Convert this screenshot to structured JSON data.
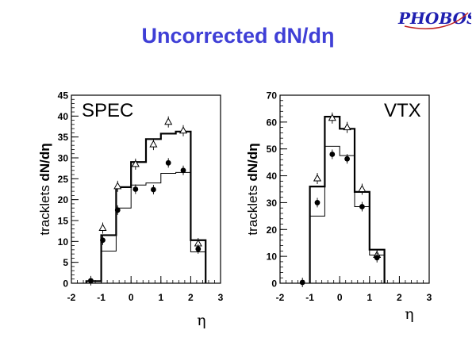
{
  "slide": {
    "title": "Uncorrected dN/dη",
    "logo_text": "PHOBOS"
  },
  "style": {
    "title_color": "#3f3fd6",
    "logo_color": "#1f1fb0",
    "logo_accent": "#c02020"
  },
  "chart_data": [
    {
      "type": "histogram",
      "panel_label": "SPEC",
      "xlabel": "η",
      "ylabel_prefix": "tracklets ",
      "ylabel_main": "dN/dη",
      "xlim": [
        -2,
        3
      ],
      "ylim": [
        0,
        45
      ],
      "xticks": [
        "-2",
        "-1",
        "0",
        "1",
        "2",
        "3"
      ],
      "yticks": [
        "0",
        "5",
        "10",
        "15",
        "20",
        "25",
        "30",
        "35",
        "40",
        "45"
      ],
      "bin_edges": [
        -1.5,
        -1.0,
        -0.5,
        0.0,
        0.5,
        1.0,
        1.5,
        2.0,
        2.5
      ],
      "thick_histogram": [
        0.5,
        11.5,
        23,
        29,
        34.5,
        35.8,
        36.3,
        10.3
      ],
      "thin_histogram": [
        0.5,
        7.7,
        18,
        23.5,
        24,
        26.3,
        26.5,
        7.5
      ],
      "open_triangles": {
        "x": [
          -0.95,
          -0.45,
          0.15,
          0.75,
          1.25,
          1.75,
          2.25
        ],
        "y": [
          13.2,
          23.2,
          28.5,
          33.2,
          38.6,
          36.5,
          9.5
        ]
      },
      "filled_circles": {
        "x": [
          -1.35,
          -0.95,
          -0.45,
          0.15,
          0.75,
          1.25,
          1.75,
          2.25
        ],
        "y": [
          0.6,
          10.3,
          17.5,
          22.5,
          22.4,
          28.8,
          27,
          8.2
        ]
      }
    },
    {
      "type": "histogram",
      "panel_label": "VTX",
      "xlabel": "η",
      "ylabel_prefix": "tracklets ",
      "ylabel_main": "dN/dη",
      "xlim": [
        -2,
        3
      ],
      "ylim": [
        0,
        70
      ],
      "xticks": [
        "-2",
        "-1",
        "0",
        "1",
        "2",
        "3"
      ],
      "yticks": [
        "0",
        "10",
        "20",
        "30",
        "40",
        "50",
        "60",
        "70"
      ],
      "bin_edges": [
        -1.0,
        -0.5,
        0.0,
        0.5,
        1.0,
        1.5
      ],
      "thick_histogram": [
        36,
        62,
        57.5,
        34,
        12.5
      ],
      "thin_histogram": [
        25,
        51,
        47.5,
        28.5,
        10.5
      ],
      "open_triangles": {
        "x": [
          -0.75,
          -0.25,
          0.25,
          0.75,
          1.25
        ],
        "y": [
          39,
          61.5,
          58,
          35,
          10.5
        ]
      },
      "filled_circles": {
        "x": [
          -1.25,
          -0.75,
          -0.25,
          0.25,
          0.75,
          1.25
        ],
        "y": [
          0.3,
          30,
          48,
          46.3,
          28.5,
          9.5
        ]
      }
    }
  ]
}
